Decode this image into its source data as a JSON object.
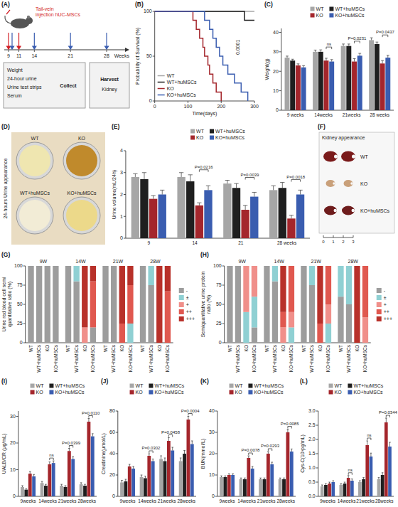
{
  "schematic": {
    "panel_label": "(A)",
    "injection_lines": [
      "Tail-vein",
      "injection hUC-MSCs"
    ],
    "weeks": [
      9,
      11,
      14,
      21,
      28
    ],
    "axis_label": "Weeks",
    "injection_weeks": [
      9,
      11
    ],
    "sampling_weeks": [
      9,
      14,
      21,
      28
    ],
    "collect_items": [
      "Weight",
      "24-hour urine",
      "Urine test strips",
      "Serum"
    ],
    "collect_label": "Collect",
    "harvest_label": "Harvest",
    "harvest_items": [
      "Kidney"
    ]
  },
  "urine_photo": {
    "panel_label": "(D)",
    "title": "24-hours Urine appearance",
    "samples": [
      "WT",
      "KO",
      "WT+huMSCs",
      "KO+huMSCs"
    ]
  },
  "kidney_photo": {
    "panel_label": "(F)",
    "title": "Kidney appearance",
    "samples": [
      "WT",
      "KO",
      "KO+huMSCs"
    ],
    "ruler": [
      "0",
      "1",
      "2",
      "3"
    ]
  },
  "chart_data": [
    {
      "type": "line",
      "panel_label": "(B)",
      "x_label": "Time(days)",
      "y_label": "Probability of Survival (%)",
      "line_style": "step",
      "legend": "lower-left",
      "xlim": [
        0,
        300
      ],
      "xticks": [
        0,
        100,
        200,
        300
      ],
      "ylim": [
        0,
        100
      ],
      "yticks": [
        0,
        50,
        100
      ],
      "series": [
        {
          "name": "WT",
          "color": "#a6a6a6",
          "x": [
            0,
            300
          ],
          "values": [
            100,
            100
          ]
        },
        {
          "name": "WT+huMSCs",
          "color": "#1f1f1f",
          "x": [
            0,
            270,
            300
          ],
          "values": [
            100,
            90,
            90
          ]
        },
        {
          "name": "KO",
          "color": "#a4262c",
          "x": [
            0,
            115,
            125,
            135,
            145,
            150,
            160,
            165,
            175,
            185,
            200
          ],
          "values": [
            100,
            90,
            80,
            70,
            60,
            50,
            40,
            30,
            20,
            10,
            0
          ]
        },
        {
          "name": "KO+huMSCs",
          "color": "#3a5db0",
          "x": [
            0,
            150,
            165,
            175,
            185,
            195,
            205,
            220,
            240,
            260,
            280
          ],
          "values": [
            100,
            90,
            80,
            70,
            60,
            50,
            40,
            30,
            20,
            10,
            0
          ]
        }
      ],
      "annotations": [
        {
          "text": "0.0001"
        }
      ]
    },
    {
      "type": "bar",
      "panel_label": "(C)",
      "y_label": "Weight(g)",
      "legend": "top",
      "categories": [
        "9 weeks",
        "14weeks",
        "21weeks",
        "28 weeks"
      ],
      "ylim": [
        0,
        42
      ],
      "yticks": [
        0,
        10,
        20,
        30,
        40
      ],
      "series": [
        {
          "name": "WT",
          "color": "#a6a6a6",
          "values": [
            27,
            30,
            33,
            36
          ],
          "errors": [
            0.8,
            0.9,
            1.0,
            1.2
          ]
        },
        {
          "name": "WT+huMSCs",
          "color": "#1f1f1f",
          "values": [
            25.5,
            30,
            33,
            34
          ],
          "errors": [
            0.7,
            1,
            1,
            1
          ]
        },
        {
          "name": "KO",
          "color": "#a4262c",
          "values": [
            23,
            25.5,
            25,
            24
          ],
          "errors": [
            0.8,
            1.2,
            1.5,
            1.5
          ]
        },
        {
          "name": "KO+huMSCs",
          "color": "#3a5db0",
          "values": [
            22,
            25,
            28,
            27
          ],
          "errors": [
            0.9,
            1,
            1.2,
            1.2
          ]
        }
      ],
      "annotations": [
        {
          "category": "14weeks",
          "text": "ns"
        },
        {
          "category": "21weeks",
          "text": "P=0.0231"
        },
        {
          "category": "28 weeks",
          "text": "P=0.0437"
        }
      ]
    },
    {
      "type": "bar",
      "panel_label": "(E)",
      "y_label": "Urine volume(mL/24h)",
      "legend": "top",
      "categories": [
        "9",
        "14",
        "21",
        "28 weeks"
      ],
      "ylim": [
        0,
        4
      ],
      "yticks": [
        0,
        1,
        2,
        3,
        4
      ],
      "series": [
        {
          "name": "WT",
          "color": "#a6a6a6",
          "values": [
            2.8,
            2.8,
            2.5,
            2.2
          ],
          "errors": [
            0.15,
            0.2,
            0.15,
            0.2
          ]
        },
        {
          "name": "WT+huMSCs",
          "color": "#1f1f1f",
          "values": [
            2.7,
            2.6,
            2.3,
            2.3
          ],
          "errors": [
            0.3,
            0.3,
            0.2,
            0.25
          ]
        },
        {
          "name": "KO",
          "color": "#a4262c",
          "values": [
            1.8,
            1.5,
            1.3,
            0.9
          ],
          "errors": [
            0.15,
            0.12,
            0.2,
            0.15
          ]
        },
        {
          "name": "KO+huMSCs",
          "color": "#3a5db0",
          "values": [
            2.0,
            2.2,
            1.9,
            2.0
          ],
          "errors": [
            0.2,
            0.2,
            0.2,
            0.2
          ]
        }
      ],
      "annotations": [
        {
          "category": "14",
          "text": "P=0.0216"
        },
        {
          "category": "21",
          "text": "P=0.0039"
        },
        {
          "category": "28 weeks",
          "text": "P=0.0018"
        }
      ]
    },
    {
      "type": "bar",
      "stacked": true,
      "panel_label": "(G)",
      "y_label": "Urine red blood cell semi quantitative ratio (%)",
      "legend": "right",
      "groups": [
        "9W",
        "14W",
        "21W",
        "28W"
      ],
      "categories": [
        "WT",
        "WT+huMSCs",
        "KO",
        "KO+huMSCs",
        "WT",
        "WT+huMSCs",
        "KO",
        "KO+huMSCs",
        "WT",
        "WT+huMSCs",
        "KO",
        "KO+huMSCs",
        "WT",
        "WT+huMSCs",
        "KO",
        "KO+huMSCs"
      ],
      "ylim": [
        0,
        100
      ],
      "yticks": [
        0,
        25,
        50,
        75,
        100
      ],
      "series": [
        {
          "name": "-",
          "color": "#9d9d9d",
          "values": [
            100,
            100,
            100,
            100,
            100,
            80,
            0,
            20,
            100,
            100,
            0,
            0,
            100,
            75,
            0,
            0
          ]
        },
        {
          "name": "±",
          "color": "#8fd0d3",
          "values": [
            0,
            0,
            0,
            0,
            0,
            20,
            0,
            0,
            0,
            0,
            0,
            25,
            0,
            25,
            0,
            0
          ]
        },
        {
          "name": "+",
          "color": "#f08f8a",
          "values": [
            0,
            0,
            0,
            0,
            0,
            0,
            20,
            0,
            0,
            0,
            0,
            0,
            0,
            0,
            0,
            0
          ]
        },
        {
          "name": "++",
          "color": "#e0584f",
          "values": [
            0,
            0,
            0,
            0,
            0,
            0,
            0,
            60,
            0,
            0,
            25,
            50,
            0,
            0,
            0,
            67
          ]
        },
        {
          "name": "+++",
          "color": "#b8312a",
          "values": [
            0,
            0,
            0,
            0,
            0,
            0,
            80,
            20,
            0,
            0,
            75,
            25,
            0,
            0,
            100,
            33
          ]
        }
      ]
    },
    {
      "type": "bar",
      "stacked": true,
      "panel_label": "(H)",
      "y_label": "Semiquantitative urine protein ratio (%)",
      "legend": "right",
      "groups": [
        "9W",
        "14W",
        "21W",
        "28W"
      ],
      "categories": [
        "WT",
        "WT+huMSCs",
        "KO",
        "KO+huMSCs",
        "WT",
        "WT+huMSCs",
        "KO",
        "KO+huMSCs",
        "WT",
        "WT+huMSCs",
        "KO",
        "KO+huMSCs",
        "WT",
        "WT+huMSCs",
        "KO",
        "KO+huMSCs"
      ],
      "ylim": [
        0,
        100
      ],
      "yticks": [
        0,
        25,
        50,
        75,
        100
      ],
      "series": [
        {
          "name": "-",
          "color": "#9d9d9d",
          "values": [
            100,
            100,
            0,
            20,
            100,
            80,
            0,
            0,
            100,
            75,
            0,
            0,
            60,
            50,
            0,
            0
          ]
        },
        {
          "name": "±",
          "color": "#8fd0d3",
          "values": [
            0,
            0,
            40,
            40,
            0,
            20,
            0,
            20,
            0,
            25,
            0,
            25,
            40,
            50,
            0,
            0
          ]
        },
        {
          "name": "+",
          "color": "#f08f8a",
          "values": [
            0,
            0,
            60,
            40,
            0,
            0,
            20,
            20,
            0,
            0,
            0,
            25,
            0,
            0,
            0,
            33
          ]
        },
        {
          "name": "++",
          "color": "#e0584f",
          "values": [
            0,
            0,
            0,
            0,
            0,
            0,
            20,
            60,
            0,
            0,
            25,
            50,
            0,
            0,
            0,
            67
          ]
        },
        {
          "name": "+++",
          "color": "#b8312a",
          "values": [
            0,
            0,
            0,
            0,
            0,
            0,
            60,
            0,
            0,
            0,
            75,
            0,
            0,
            0,
            100,
            0
          ]
        }
      ]
    },
    {
      "type": "bar",
      "panel_label": "(I)",
      "y_label": "UALB/CR (μg/mL)",
      "legend": "top",
      "categories": [
        "9weeks",
        "14weeks",
        "21weeks",
        "28weeks"
      ],
      "ylim": [
        0,
        32
      ],
      "yticks": [
        0,
        10,
        20,
        30
      ],
      "series": [
        {
          "name": "WT",
          "color": "#a6a6a6",
          "values": [
            3.5,
            5,
            4,
            4.5
          ],
          "errors": [
            0.5,
            0.6,
            0.5,
            0.6
          ]
        },
        {
          "name": "WT+huMSCs",
          "color": "#1f1f1f",
          "values": [
            2.5,
            4,
            3.5,
            4
          ],
          "errors": [
            0.4,
            0.5,
            0.5,
            0.5
          ]
        },
        {
          "name": "KO",
          "color": "#a4262c",
          "values": [
            8.5,
            12,
            17,
            28
          ],
          "errors": [
            0.8,
            0.9,
            1,
            1.2
          ]
        },
        {
          "name": "KO+huMSCs",
          "color": "#3a5db0",
          "values": [
            7.5,
            12.5,
            14,
            22.5
          ],
          "errors": [
            0.7,
            0.8,
            0.9,
            1
          ]
        }
      ],
      "annotations": [
        {
          "category": "14weeks",
          "text": "ns"
        },
        {
          "category": "21weeks",
          "text": "P=0.0399"
        },
        {
          "category": "28weeks",
          "text": "P=0.0110"
        }
      ]
    },
    {
      "type": "bar",
      "panel_label": "(J)",
      "y_label": "Creatinine(μmol/L)",
      "legend": "top",
      "categories": [
        "9weeks",
        "14weeks",
        "21weeks",
        "28weeks"
      ],
      "ylim": [
        0,
        80
      ],
      "yticks": [
        0,
        20,
        40,
        60,
        80
      ],
      "series": [
        {
          "name": "WT",
          "color": "#a6a6a6",
          "values": [
            13,
            18,
            35,
            33
          ],
          "errors": [
            2,
            2,
            3,
            3
          ]
        },
        {
          "name": "WT+huMSCs",
          "color": "#1f1f1f",
          "values": [
            14,
            17,
            33,
            40
          ],
          "errors": [
            2,
            2,
            3,
            3
          ]
        },
        {
          "name": "KO",
          "color": "#a4262c",
          "values": [
            28,
            38,
            52,
            72
          ],
          "errors": [
            2,
            2,
            3,
            3
          ]
        },
        {
          "name": "KO+huMSCs",
          "color": "#3a5db0",
          "values": [
            26,
            33,
            43,
            49
          ],
          "errors": [
            2,
            2,
            3,
            3
          ]
        }
      ],
      "annotations": [
        {
          "category": "14weeks",
          "text": "P=0.0302"
        },
        {
          "category": "21weeks",
          "text": "P=0.0458"
        },
        {
          "category": "28weeks",
          "text": "P=0.0004"
        }
      ]
    },
    {
      "type": "bar",
      "panel_label": "(K)",
      "y_label": "BUN(mmol/L)",
      "legend": "top",
      "categories": [
        "9weeks",
        "14weeks",
        "21weeks",
        "28weeks"
      ],
      "ylim": [
        0,
        40
      ],
      "yticks": [
        0,
        10,
        20,
        30,
        40
      ],
      "series": [
        {
          "name": "WT",
          "color": "#a6a6a6",
          "values": [
            9,
            8,
            8,
            8
          ],
          "errors": [
            0.6,
            0.6,
            0.6,
            0.6
          ]
        },
        {
          "name": "WT+huMSCs",
          "color": "#1f1f1f",
          "values": [
            9,
            8,
            8,
            8
          ],
          "errors": [
            0.6,
            0.6,
            0.6,
            0.6
          ]
        },
        {
          "name": "KO",
          "color": "#a4262c",
          "values": [
            10,
            18,
            20,
            30
          ],
          "errors": [
            0.6,
            1,
            1,
            1.5
          ]
        },
        {
          "name": "KO+huMSCs",
          "color": "#3a5db0",
          "values": [
            10,
            13,
            15,
            21
          ],
          "errors": [
            0.6,
            1,
            1,
            1.2
          ]
        }
      ],
      "annotations": [
        {
          "category": "14weeks",
          "text": "P=0.0078"
        },
        {
          "category": "21weeks",
          "text": "P=0.0293"
        },
        {
          "category": "28weeks",
          "text": "P=0.0085"
        }
      ]
    },
    {
      "type": "bar",
      "panel_label": "(L)",
      "y_label": "Cys-C(10³pg/mL)",
      "legend": "top",
      "categories": [
        "9weeks",
        "14weeks",
        "21weeks",
        "28weeks"
      ],
      "ylim": [
        0,
        3
      ],
      "yticks": [
        {
          "value": 0,
          "label": "0.0"
        },
        0.5,
        {
          "value": 1,
          "label": "1.0"
        },
        1.5,
        {
          "value": 2,
          "label": "2.0"
        },
        2.5,
        {
          "value": 3,
          "label": "3.0"
        }
      ],
      "series": [
        {
          "name": "WT",
          "color": "#a6a6a6",
          "values": [
            0.35,
            0.4,
            0.5,
            0.6
          ],
          "errors": [
            0.05,
            0.05,
            0.05,
            0.06
          ]
        },
        {
          "name": "WT+huMSCs",
          "color": "#1f1f1f",
          "values": [
            0.4,
            0.45,
            0.6,
            0.75
          ],
          "errors": [
            0.05,
            0.05,
            0.06,
            0.08
          ]
        },
        {
          "name": "KO",
          "color": "#a4262c",
          "values": [
            0.45,
            0.65,
            1.8,
            2.6
          ],
          "errors": [
            0.05,
            0.08,
            0.15,
            0.15
          ]
        },
        {
          "name": "KO+huMSCs",
          "color": "#3a5db0",
          "values": [
            0.5,
            0.55,
            1.4,
            1.75
          ],
          "errors": [
            0.05,
            0.06,
            0.12,
            0.15
          ]
        }
      ],
      "annotations": [
        {
          "category": "14weeks",
          "text": "ns"
        },
        {
          "category": "21weeks",
          "text": "ns"
        },
        {
          "category": "28weeks",
          "text": "P=0.0344"
        }
      ]
    }
  ]
}
